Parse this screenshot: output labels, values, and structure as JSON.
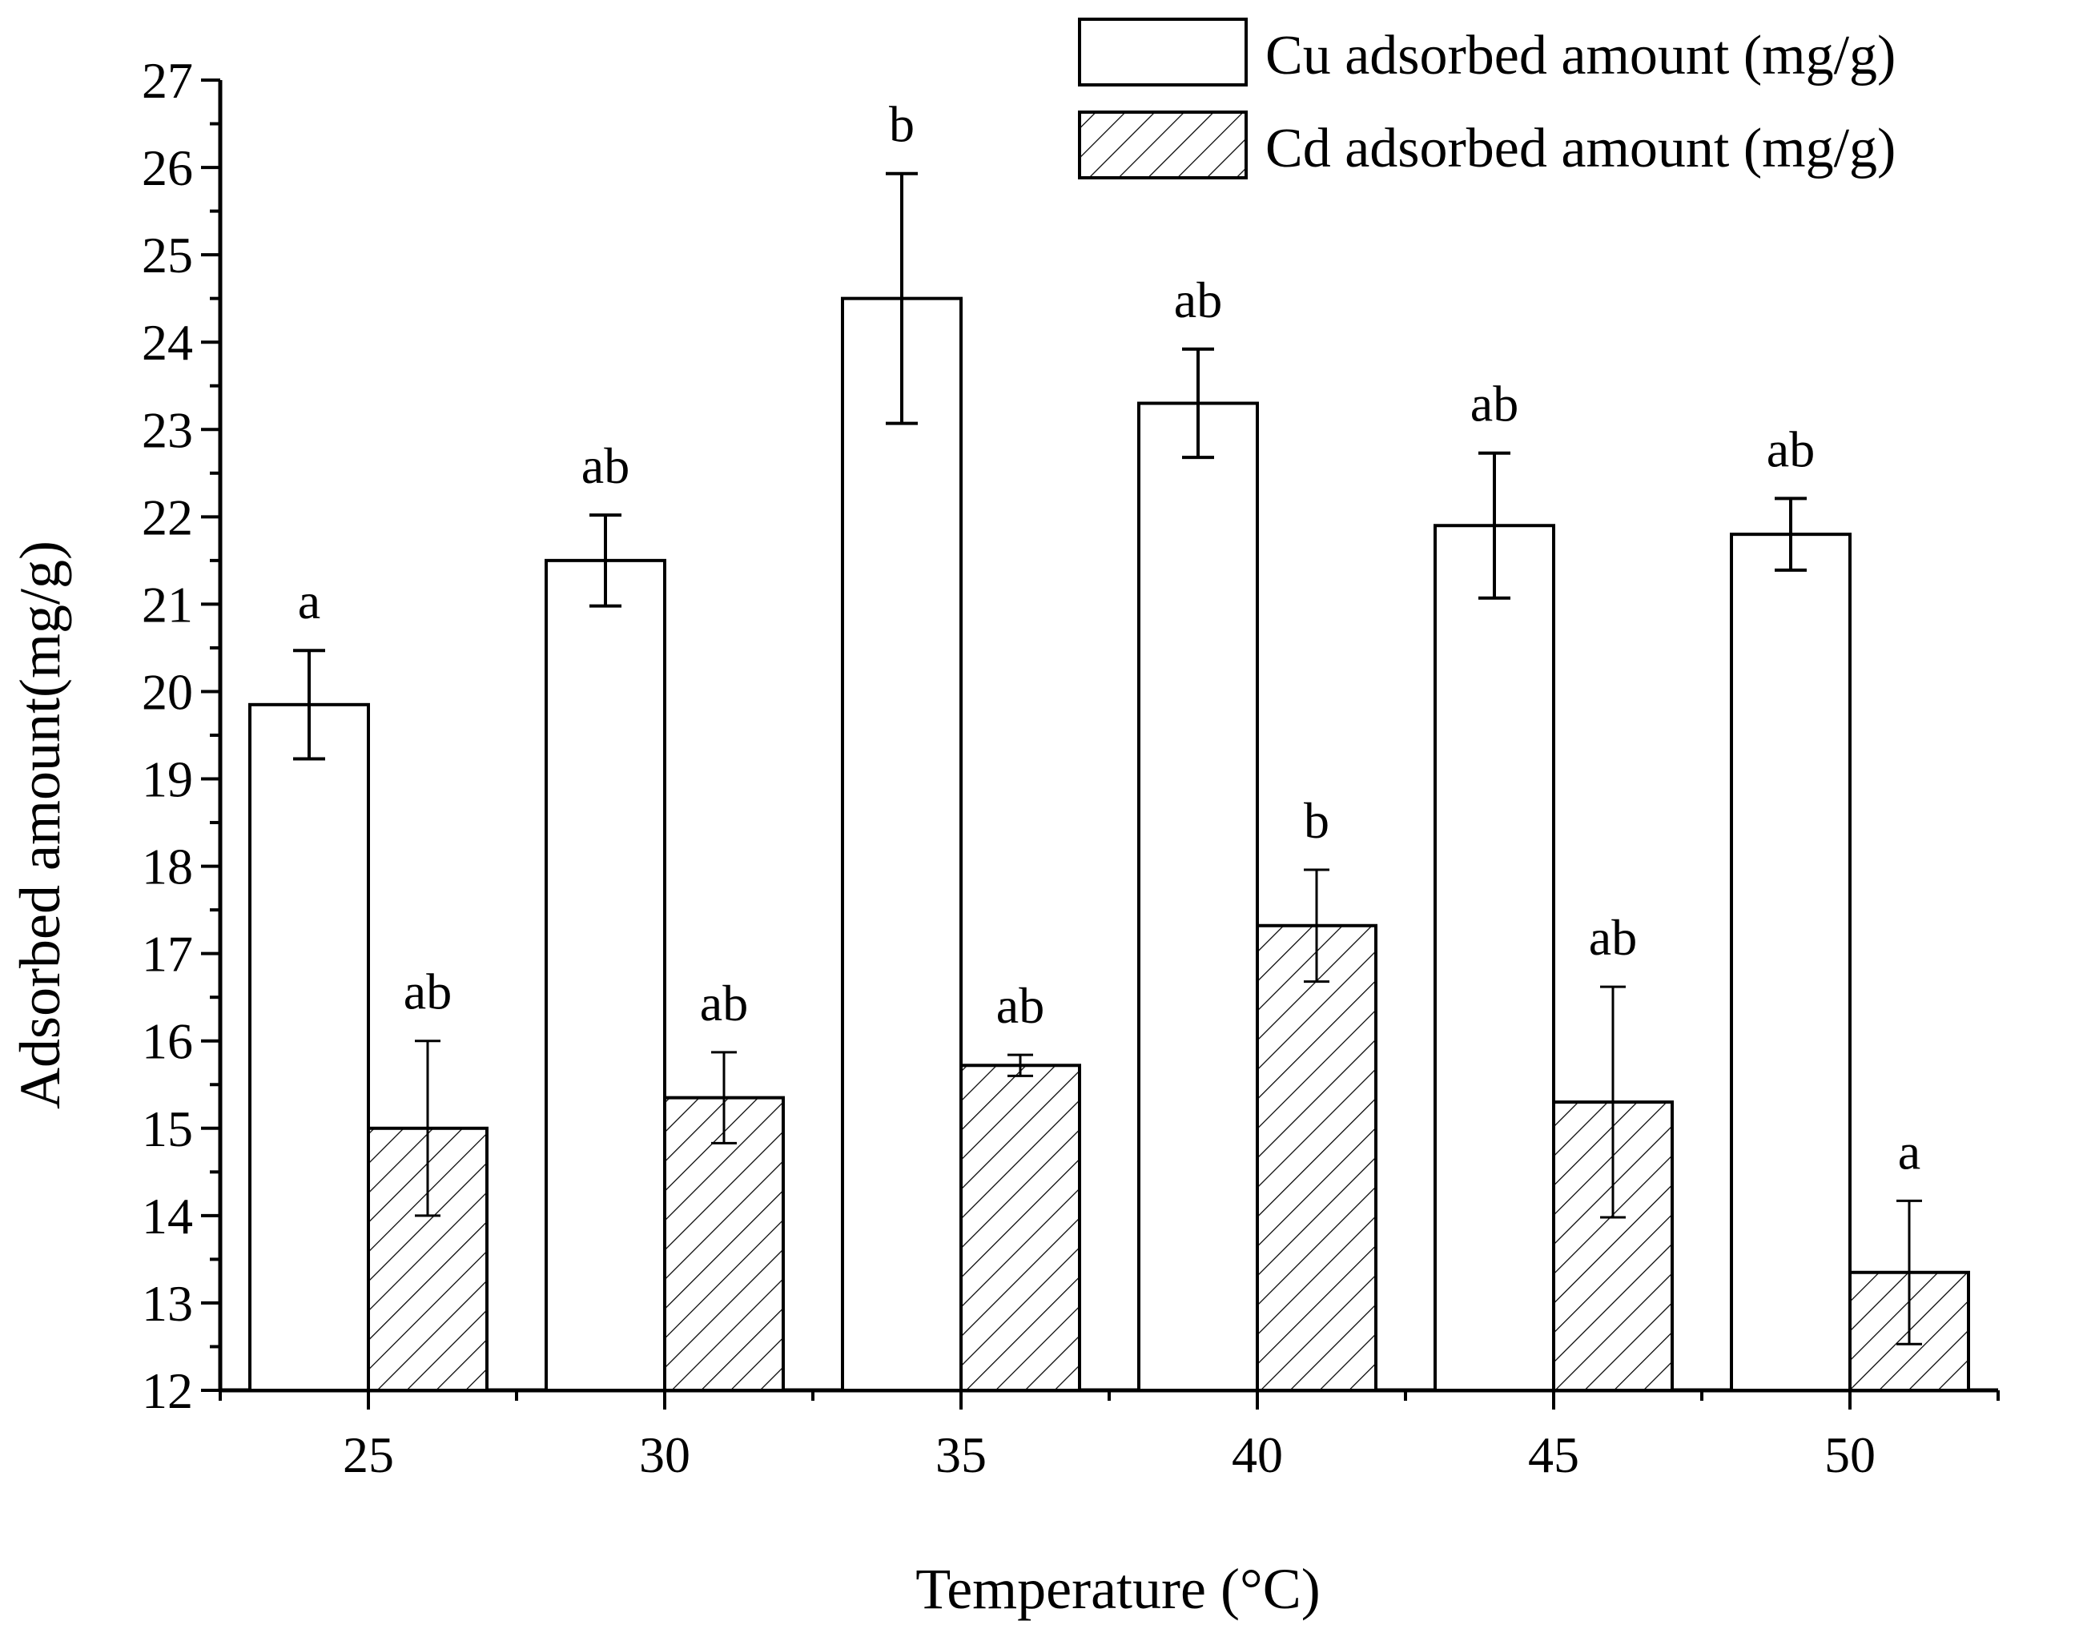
{
  "chart_data": {
    "type": "bar",
    "categories": [
      "25",
      "30",
      "35",
      "40",
      "45",
      "50"
    ],
    "xlabel": "Temperature (°C)",
    "ylabel": "Adsorbed amount(mg/g)",
    "ylim": [
      12,
      27
    ],
    "yticks": [
      12,
      13,
      14,
      15,
      16,
      17,
      18,
      19,
      20,
      21,
      22,
      23,
      24,
      25,
      26,
      27
    ],
    "legend_position": "top-right",
    "grid": false,
    "series": [
      {
        "name": "Cu adsorbed amount (mg/g)",
        "fill": "white",
        "values": [
          19.85,
          21.5,
          24.5,
          23.3,
          21.9,
          21.8
        ],
        "errors": [
          0.62,
          0.52,
          1.43,
          0.62,
          0.83,
          0.41
        ],
        "labels": [
          "a",
          "ab",
          "b",
          "ab",
          "ab",
          "ab"
        ]
      },
      {
        "name": "Cd adsorbed amount (mg/g)",
        "fill": "hatched",
        "values": [
          15.0,
          15.35,
          15.72,
          17.32,
          15.3,
          13.35
        ],
        "errors": [
          1.0,
          0.52,
          0.12,
          0.64,
          1.32,
          0.82
        ],
        "labels": [
          "ab",
          "ab",
          "ab",
          "b",
          "ab",
          "a"
        ]
      }
    ]
  }
}
